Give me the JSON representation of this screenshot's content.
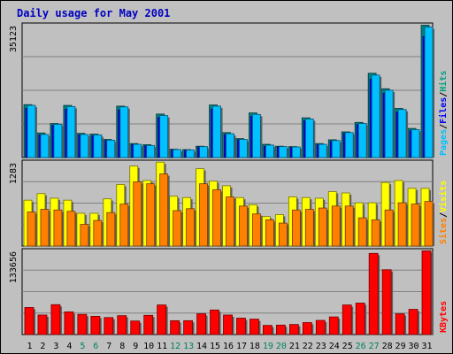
{
  "title": "Daily usage for May 2001",
  "chart_data": [
    {
      "type": "bar",
      "panel": "hits-files-pages",
      "ymax_label": "35123",
      "ylim": [
        0,
        35123
      ],
      "legend": [
        {
          "label": "Pages",
          "color": "#00c0ff"
        },
        {
          "label": "/",
          "color": "#000000"
        },
        {
          "label": "Files",
          "color": "#0000ff"
        },
        {
          "label": "/",
          "color": "#000000"
        },
        {
          "label": "Hits",
          "color": "#00a080"
        }
      ],
      "x": [
        1,
        2,
        3,
        4,
        5,
        6,
        7,
        8,
        9,
        10,
        11,
        12,
        13,
        14,
        15,
        16,
        17,
        18,
        19,
        20,
        21,
        22,
        23,
        24,
        25,
        26,
        27,
        28,
        29,
        30,
        31
      ],
      "series": [
        {
          "name": "Hits",
          "color": "#008080",
          "values": [
            14000,
            6500,
            9000,
            13800,
            6400,
            6200,
            4800,
            13600,
            3700,
            3400,
            11500,
            2200,
            2100,
            3000,
            13900,
            6600,
            5000,
            11800,
            3500,
            3000,
            2900,
            10500,
            3700,
            4700,
            6800,
            9300,
            22300,
            18200,
            13000,
            7700,
            35000
          ]
        },
        {
          "name": "Files",
          "color": "#0000ff",
          "values": [
            13000,
            6000,
            8500,
            12800,
            6000,
            5800,
            4500,
            12600,
            3400,
            3100,
            10600,
            2000,
            1900,
            2800,
            12800,
            6100,
            4700,
            10900,
            3000,
            2800,
            2700,
            9700,
            3400,
            4300,
            6400,
            8700,
            20700,
            17000,
            12000,
            7100,
            32000
          ]
        },
        {
          "name": "Pages",
          "color": "#00c0ff",
          "values": [
            13800,
            6100,
            8800,
            13500,
            6100,
            6000,
            4600,
            13400,
            3500,
            3200,
            11100,
            2100,
            2000,
            2900,
            13600,
            6300,
            4800,
            11400,
            3300,
            2900,
            2800,
            10200,
            3500,
            4500,
            6600,
            9000,
            21800,
            17800,
            12700,
            7400,
            34500
          ]
        }
      ]
    },
    {
      "type": "bar",
      "panel": "visits-sites",
      "ymax_label": "1283",
      "ylim": [
        0,
        1283
      ],
      "legend": [
        {
          "label": "Sites",
          "color": "#ff8000"
        },
        {
          "label": "/",
          "color": "#000000"
        },
        {
          "label": "Visits",
          "color": "#ffff00"
        }
      ],
      "x": [
        1,
        2,
        3,
        4,
        5,
        6,
        7,
        8,
        9,
        10,
        11,
        12,
        13,
        14,
        15,
        16,
        17,
        18,
        19,
        20,
        21,
        22,
        23,
        24,
        25,
        26,
        27,
        28,
        29,
        30,
        31
      ],
      "series": [
        {
          "name": "Visits",
          "color": "#ffff00",
          "values": [
            700,
            800,
            730,
            700,
            500,
            500,
            720,
            940,
            1220,
            1000,
            1280,
            760,
            740,
            1180,
            990,
            920,
            740,
            630,
            450,
            480,
            750,
            740,
            730,
            830,
            810,
            660,
            660,
            970,
            1000,
            880,
            880
          ]
        },
        {
          "name": "Sites",
          "color": "#ff8000",
          "values": [
            520,
            560,
            550,
            530,
            330,
            390,
            510,
            640,
            980,
            950,
            1100,
            540,
            570,
            950,
            860,
            750,
            610,
            490,
            400,
            350,
            550,
            560,
            580,
            610,
            610,
            430,
            400,
            550,
            660,
            640,
            680
          ]
        }
      ]
    },
    {
      "type": "bar",
      "panel": "kbytes",
      "ymax_label": "133656",
      "ylim": [
        0,
        133656
      ],
      "legend": [
        {
          "label": "KBytes",
          "color": "#ff0000"
        }
      ],
      "x": [
        1,
        2,
        3,
        4,
        5,
        6,
        7,
        8,
        9,
        10,
        11,
        12,
        13,
        14,
        15,
        16,
        17,
        18,
        19,
        20,
        21,
        22,
        23,
        24,
        25,
        26,
        27,
        28,
        29,
        30,
        31
      ],
      "series": [
        {
          "name": "KBytes",
          "color": "#ff0000",
          "values": [
            43000,
            31000,
            47500,
            36000,
            32000,
            29000,
            27000,
            30000,
            21500,
            30500,
            47000,
            22000,
            22000,
            33000,
            39000,
            31000,
            26000,
            24500,
            14500,
            15000,
            16000,
            19000,
            22500,
            28000,
            47000,
            50000,
            129000,
            103000,
            33000,
            40000,
            133000
          ]
        }
      ]
    }
  ],
  "x_labels": [
    {
      "t": "1",
      "c": "#000000"
    },
    {
      "t": "2",
      "c": "#000000"
    },
    {
      "t": "3",
      "c": "#000000"
    },
    {
      "t": "4",
      "c": "#000000"
    },
    {
      "t": "5",
      "c": "#008060"
    },
    {
      "t": "6",
      "c": "#008060"
    },
    {
      "t": "7",
      "c": "#000000"
    },
    {
      "t": "8",
      "c": "#000000"
    },
    {
      "t": "9",
      "c": "#000000"
    },
    {
      "t": "10",
      "c": "#000000"
    },
    {
      "t": "11",
      "c": "#000000"
    },
    {
      "t": "12",
      "c": "#008060"
    },
    {
      "t": "13",
      "c": "#008060"
    },
    {
      "t": "14",
      "c": "#000000"
    },
    {
      "t": "15",
      "c": "#000000"
    },
    {
      "t": "16",
      "c": "#000000"
    },
    {
      "t": "17",
      "c": "#000000"
    },
    {
      "t": "18",
      "c": "#000000"
    },
    {
      "t": "19",
      "c": "#008060"
    },
    {
      "t": "20",
      "c": "#008060"
    },
    {
      "t": "21",
      "c": "#000000"
    },
    {
      "t": "22",
      "c": "#000000"
    },
    {
      "t": "23",
      "c": "#000000"
    },
    {
      "t": "24",
      "c": "#000000"
    },
    {
      "t": "25",
      "c": "#000000"
    },
    {
      "t": "26",
      "c": "#008060"
    },
    {
      "t": "27",
      "c": "#008060"
    },
    {
      "t": "28",
      "c": "#000000"
    },
    {
      "t": "29",
      "c": "#000000"
    },
    {
      "t": "30",
      "c": "#000000"
    },
    {
      "t": "31",
      "c": "#000000"
    }
  ]
}
